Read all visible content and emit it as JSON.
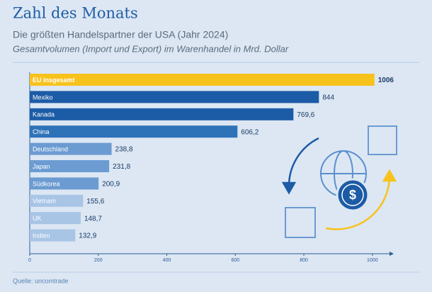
{
  "chart_data": {
    "type": "bar",
    "orientation": "horizontal",
    "title": "Zahl des Monats",
    "subtitle": "Die größten Handelspartner der USA (Jahr 2024)",
    "subtitle2": "Gesamtvolumen (Import und Export) im Warenhandel in Mrd. Dollar",
    "categories": [
      "EU insgesamt",
      "Mexiko",
      "Kanada",
      "China",
      "Deutschland",
      "Japan",
      "Südkorea",
      "Vietnam",
      "UK",
      "Indien"
    ],
    "values": [
      1006,
      844,
      769.6,
      606.2,
      238.8,
      231.8,
      200.9,
      155.6,
      148.7,
      132.9
    ],
    "value_labels": [
      "1006",
      "844",
      "769,6",
      "606,2",
      "238,8",
      "231,8",
      "200,9",
      "155,6",
      "148,7",
      "132,9"
    ],
    "colors": [
      "#f8c21c",
      "#1c5ba6",
      "#1c5ba6",
      "#2e72b8",
      "#6b9bd1",
      "#6b9bd1",
      "#6b9bd1",
      "#a8c5e6",
      "#a8c5e6",
      "#a8c5e6"
    ],
    "xlim": [
      0,
      1050
    ],
    "xticks": [
      0,
      200,
      400,
      600,
      800,
      1000
    ],
    "source": "Quelle: uncomtrade"
  }
}
